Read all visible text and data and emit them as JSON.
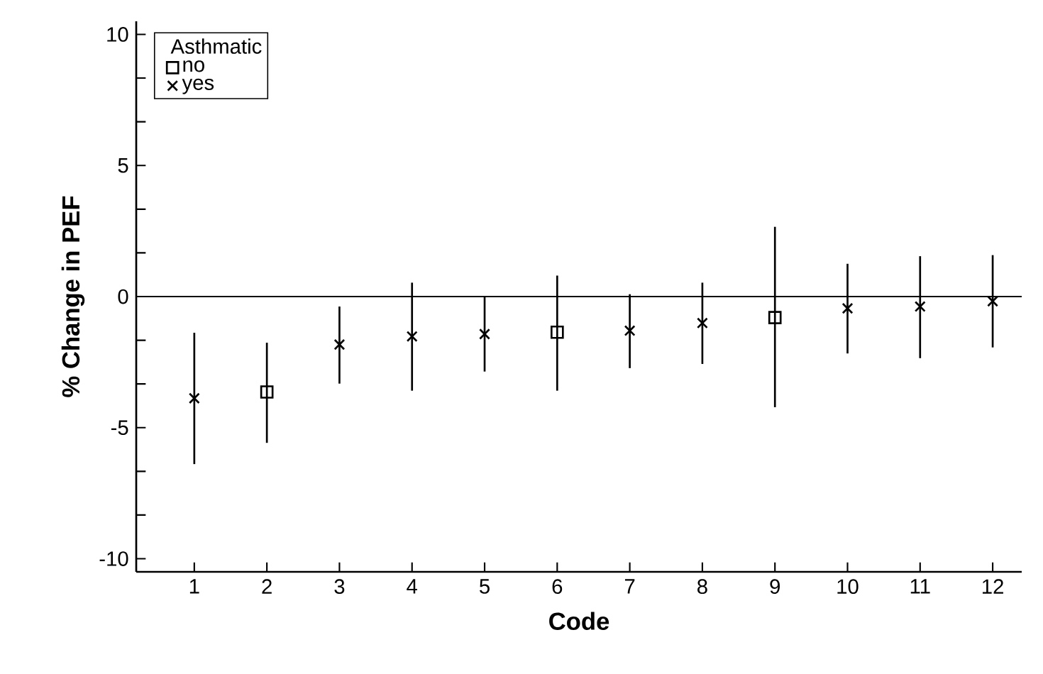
{
  "chart_data": {
    "type": "scatter",
    "xlabel": "Code",
    "ylabel": "% Change in PEF",
    "legend_title": "Asthmatic",
    "legend": "top left",
    "grid": false,
    "xlim": [
      0.2,
      12.4
    ],
    "ylim": [
      -10.5,
      10.5
    ],
    "xticks": [
      1,
      2,
      3,
      4,
      5,
      6,
      7,
      8,
      9,
      10,
      11,
      12
    ],
    "yticks": [
      -10,
      -5,
      0,
      5,
      10
    ],
    "ref_lines": [
      {
        "axis": "y",
        "value": 0,
        "color": "#000000"
      }
    ],
    "series": [
      {
        "name": "no",
        "color": "#000000",
        "marker": "square",
        "x": [
          2,
          6,
          9
        ],
        "values": [
          -3.64,
          -1.36,
          -0.8
        ],
        "errors": [
          [
            -5.58,
            -1.76
          ],
          [
            -3.59,
            0.8
          ],
          [
            -4.22,
            2.66
          ]
        ]
      },
      {
        "name": "yes",
        "color": "#000000",
        "marker": "cross",
        "x": [
          1,
          3,
          4,
          5,
          7,
          8,
          10,
          11,
          12
        ],
        "values": [
          -3.88,
          -1.83,
          -1.52,
          -1.43,
          -1.3,
          -1.01,
          -0.45,
          -0.38,
          -0.18
        ],
        "errors": [
          [
            -6.39,
            -1.38
          ],
          [
            -3.32,
            -0.38
          ],
          [
            -3.59,
            0.53
          ],
          [
            -2.86,
            0.0
          ],
          [
            -2.73,
            0.09
          ],
          [
            -2.57,
            0.53
          ],
          [
            -2.17,
            1.25
          ],
          [
            -2.35,
            1.54
          ],
          [
            -1.94,
            1.58
          ]
        ]
      }
    ]
  }
}
